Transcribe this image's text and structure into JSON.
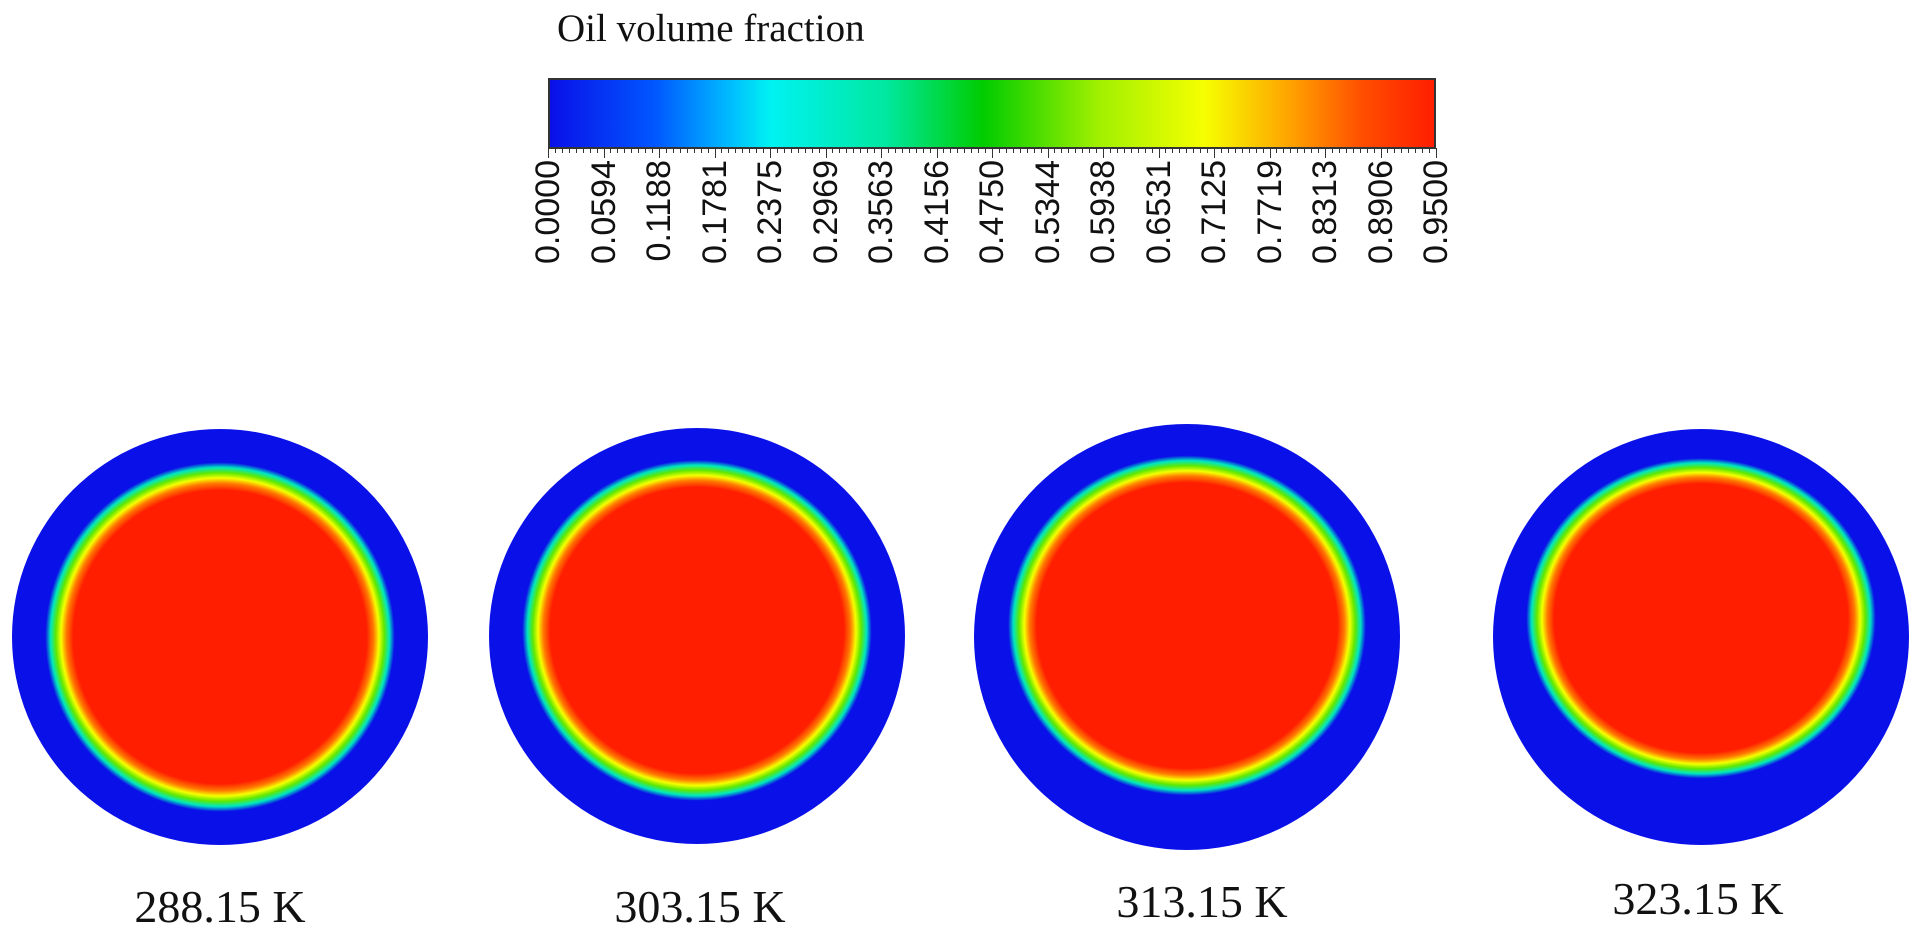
{
  "colorbar": {
    "title": "Oil volume fraction",
    "min": 0.0,
    "max": 0.95,
    "tick_labels": [
      "0.0000",
      "0.0594",
      "0.1188",
      "0.1781",
      "0.2375",
      "0.2969",
      "0.3563",
      "0.4156",
      "0.4750",
      "0.5344",
      "0.5938",
      "0.6531",
      "0.7125",
      "0.7719",
      "0.8313",
      "0.8906",
      "0.9500"
    ],
    "colors": [
      "#0a10e8",
      "#00f2f2",
      "#00cc00",
      "#f6ff00",
      "#ff1e00"
    ]
  },
  "panels": [
    {
      "caption": "288.15 K",
      "core_offset": 0.0
    },
    {
      "caption": "303.15 K",
      "core_offset": 0.06
    },
    {
      "caption": "313.15 K",
      "core_offset": 0.12
    },
    {
      "caption": "323.15 K",
      "core_offset": 0.2
    }
  ]
}
